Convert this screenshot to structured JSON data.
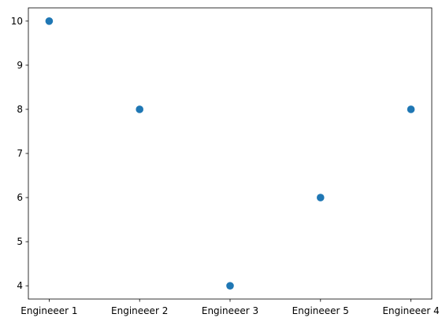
{
  "chart_data": {
    "type": "scatter",
    "title": "",
    "xlabel": "",
    "ylabel": "",
    "categories": [
      "Engineeer 1",
      "Engineeer 2",
      "Engineeer 3",
      "Engineeer 5",
      "Engineeer 4"
    ],
    "values": [
      10,
      8,
      4,
      6,
      8
    ],
    "ylim": [
      3.7,
      10.3
    ],
    "yticks": [
      4,
      5,
      6,
      7,
      8,
      9,
      10
    ],
    "grid": false,
    "legend": "none",
    "marker_color": "#1f77b4"
  }
}
